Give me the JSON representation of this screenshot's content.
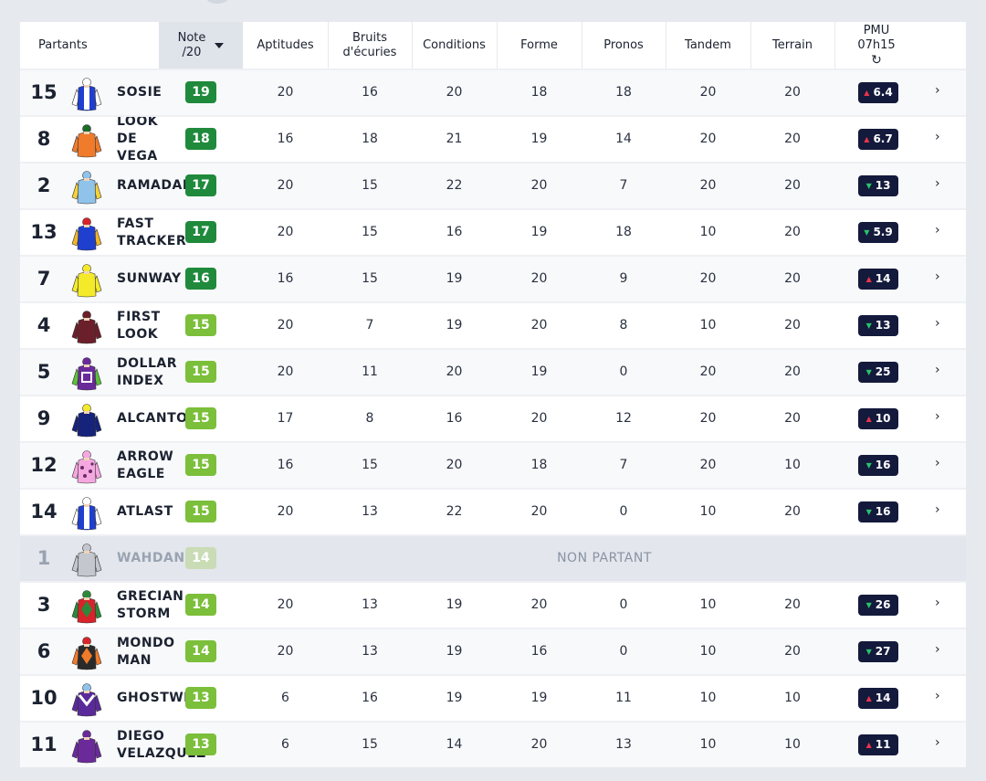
{
  "header": {
    "partants": "Partants",
    "note_line1": "Note",
    "note_line2": "/20",
    "aptitudes": "Aptitudes",
    "bruits_line1": "Bruits",
    "bruits_line2": "d'écuries",
    "conditions": "Conditions",
    "forme": "Forme",
    "pronos": "Pronos",
    "tandem": "Tandem",
    "terrain": "Terrain",
    "pmu_line1": "PMU",
    "pmu_line2": "07h15",
    "refresh_icon": "refresh-icon"
  },
  "colors": {
    "note_dark_green": "#1f8a3c",
    "note_light_green": "#7bbf3a",
    "note_disabled": "#c9dcb6",
    "odds_bg": "#141a3c",
    "odds_up": "#e8344b",
    "odds_down": "#27c46a"
  },
  "non_partant_label": "NON PARTANT",
  "rows": [
    {
      "num": "15",
      "name": "SOSIE",
      "note": "19",
      "tone": "dark",
      "aptitudes": "20",
      "bruits": "16",
      "conditions": "20",
      "forme": "18",
      "pronos": "18",
      "tandem": "20",
      "terrain": "20",
      "odds": "6.4",
      "trend": "up",
      "silk": {
        "body": "#1f3fcf",
        "sleeve": "#ffffff",
        "cap": "#ffffff",
        "pattern": "stripe"
      }
    },
    {
      "num": "8",
      "name": "LOOK\nDE\nVEGA",
      "note": "18",
      "tone": "dark",
      "aptitudes": "16",
      "bruits": "18",
      "conditions": "21",
      "forme": "19",
      "pronos": "14",
      "tandem": "20",
      "terrain": "20",
      "odds": "6.7",
      "trend": "up",
      "silk": {
        "body": "#f07b2a",
        "sleeve": "#f07b2a",
        "cap": "#1d6b2b",
        "pattern": "plain"
      }
    },
    {
      "num": "2",
      "name": "RAMADAN",
      "note": "17",
      "tone": "dark",
      "aptitudes": "20",
      "bruits": "15",
      "conditions": "22",
      "forme": "20",
      "pronos": "7",
      "tandem": "20",
      "terrain": "20",
      "odds": "13",
      "trend": "down",
      "silk": {
        "body": "#8fc3ea",
        "sleeve": "#f5d23a",
        "cap": "#8fc3ea",
        "pattern": "plain"
      }
    },
    {
      "num": "13",
      "name": "FAST\nTRACKER",
      "note": "17",
      "tone": "dark",
      "aptitudes": "20",
      "bruits": "15",
      "conditions": "16",
      "forme": "19",
      "pronos": "18",
      "tandem": "10",
      "terrain": "20",
      "odds": "5.9",
      "trend": "down",
      "silk": {
        "body": "#1f3fcf",
        "sleeve": "#f0b62a",
        "cap": "#d8232a",
        "pattern": "plain"
      }
    },
    {
      "num": "7",
      "name": "SUNWAY",
      "note": "16",
      "tone": "dark",
      "aptitudes": "16",
      "bruits": "15",
      "conditions": "19",
      "forme": "20",
      "pronos": "9",
      "tandem": "20",
      "terrain": "20",
      "odds": "14",
      "trend": "up",
      "silk": {
        "body": "#f5ea2a",
        "sleeve": "#f5ea2a",
        "cap": "#f5ea2a",
        "pattern": "plain"
      }
    },
    {
      "num": "4",
      "name": "FIRST\nLOOK",
      "note": "15",
      "tone": "light",
      "aptitudes": "20",
      "bruits": "7",
      "conditions": "19",
      "forme": "20",
      "pronos": "8",
      "tandem": "10",
      "terrain": "20",
      "odds": "13",
      "trend": "down",
      "silk": {
        "body": "#6b1f2a",
        "sleeve": "#6b1f2a",
        "cap": "#6b1f2a",
        "pattern": "plain"
      }
    },
    {
      "num": "5",
      "name": "DOLLAR\nINDEX",
      "note": "15",
      "tone": "light",
      "aptitudes": "20",
      "bruits": "11",
      "conditions": "20",
      "forme": "19",
      "pronos": "0",
      "tandem": "20",
      "terrain": "20",
      "odds": "25",
      "trend": "down",
      "silk": {
        "body": "#6a2a9a",
        "sleeve": "#5cc03a",
        "cap": "#6a2a9a",
        "pattern": "square"
      }
    },
    {
      "num": "9",
      "name": "ALCANTOR",
      "note": "15",
      "tone": "light",
      "aptitudes": "17",
      "bruits": "8",
      "conditions": "16",
      "forme": "20",
      "pronos": "12",
      "tandem": "20",
      "terrain": "20",
      "odds": "10",
      "trend": "up",
      "silk": {
        "body": "#16237a",
        "sleeve": "#16237a",
        "cap": "#f5ea2a",
        "pattern": "plain"
      }
    },
    {
      "num": "12",
      "name": "ARROW\nEAGLE",
      "note": "15",
      "tone": "light",
      "aptitudes": "16",
      "bruits": "15",
      "conditions": "20",
      "forme": "18",
      "pronos": "7",
      "tandem": "20",
      "terrain": "10",
      "odds": "16",
      "trend": "down",
      "silk": {
        "body": "#f5a8e0",
        "sleeve": "#f5a8e0",
        "cap": "#f5a8e0",
        "pattern": "dots"
      }
    },
    {
      "num": "14",
      "name": "ATLAST",
      "note": "15",
      "tone": "light",
      "aptitudes": "20",
      "bruits": "13",
      "conditions": "22",
      "forme": "20",
      "pronos": "0",
      "tandem": "10",
      "terrain": "20",
      "odds": "16",
      "trend": "down",
      "silk": {
        "body": "#1f3fcf",
        "sleeve": "#ffffff",
        "cap": "#ffffff",
        "pattern": "stripe"
      }
    },
    {
      "num": "1",
      "name": "WAHDAN",
      "note": "14",
      "tone": "disabled",
      "nonpartant": true,
      "silk": {
        "body": "#c4c7cd",
        "sleeve": "#c4c7cd",
        "cap": "#c4c7cd",
        "pattern": "plain"
      }
    },
    {
      "num": "3",
      "name": "GRECIAN\nSTORM",
      "note": "14",
      "tone": "light",
      "aptitudes": "20",
      "bruits": "13",
      "conditions": "19",
      "forme": "20",
      "pronos": "0",
      "tandem": "10",
      "terrain": "20",
      "odds": "26",
      "trend": "down",
      "silk": {
        "body": "#d8232a",
        "sleeve": "#2a8a3a",
        "cap": "#2a8a3a",
        "pattern": "diamond"
      }
    },
    {
      "num": "6",
      "name": "MONDO\nMAN",
      "note": "14",
      "tone": "light",
      "aptitudes": "20",
      "bruits": "13",
      "conditions": "19",
      "forme": "16",
      "pronos": "0",
      "tandem": "10",
      "terrain": "20",
      "odds": "27",
      "trend": "down",
      "silk": {
        "body": "#2a2a2a",
        "sleeve": "#f07b2a",
        "cap": "#d8232a",
        "pattern": "diamond"
      }
    },
    {
      "num": "10",
      "name": "GHOSTWRITER",
      "note": "13",
      "tone": "light",
      "aptitudes": "6",
      "bruits": "16",
      "conditions": "19",
      "forme": "19",
      "pronos": "11",
      "tandem": "10",
      "terrain": "10",
      "odds": "14",
      "trend": "up",
      "silk": {
        "body": "#5a2a9a",
        "sleeve": "#5a2a9a",
        "cap": "#8fc3ea",
        "pattern": "chevron"
      }
    },
    {
      "num": "11",
      "name": "DIEGO\nVELAZQUEZ",
      "note": "13",
      "tone": "light",
      "aptitudes": "6",
      "bruits": "15",
      "conditions": "14",
      "forme": "20",
      "pronos": "13",
      "tandem": "10",
      "terrain": "10",
      "odds": "11",
      "trend": "up",
      "silk": {
        "body": "#6a2a9a",
        "sleeve": "#6a2a9a",
        "cap": "#6a2a9a",
        "pattern": "plain"
      }
    }
  ]
}
